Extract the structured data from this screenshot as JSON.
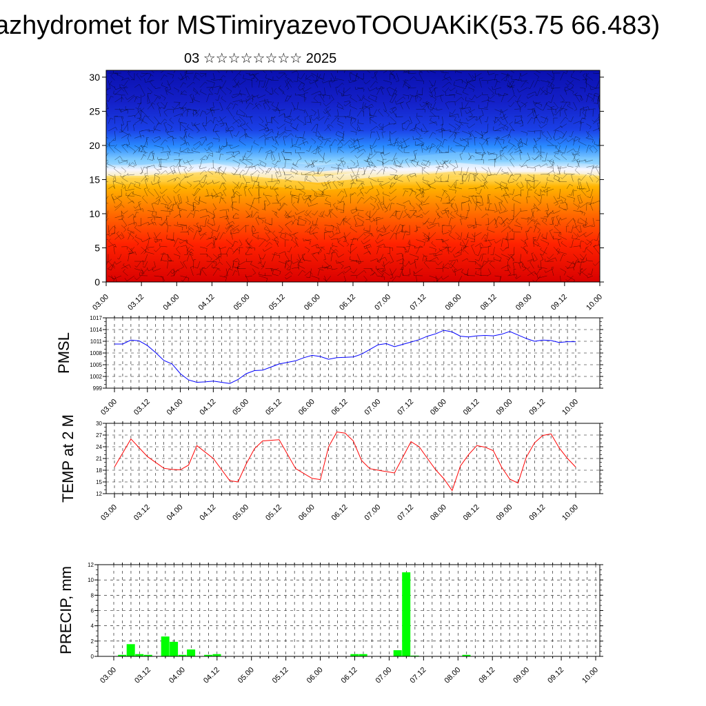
{
  "title": "azhydromet for MSTimiryazevoTOOUAKiK(53.75 66.483)",
  "subtitle": "03 ☆☆☆☆☆☆☆☆ 2025",
  "colors": {
    "pmsl_line": "#0000ff",
    "temp_line": "#ff0000",
    "precip_bar": "#00ff00"
  },
  "time_ticks": [
    "03.00",
    "03.12",
    "04.00",
    "04.12",
    "05.00",
    "05.12",
    "06.00",
    "06.12",
    "07.00",
    "07.12",
    "08.00",
    "08.12",
    "09.00",
    "09.12",
    "10.00"
  ],
  "chart_data": [
    {
      "type": "heatmap",
      "title": "",
      "xlabel": "",
      "ylabel": "",
      "x_ticks": [
        "03.00",
        "03.12",
        "04.00",
        "04.12",
        "05.00",
        "05.12",
        "06.00",
        "06.12",
        "07.00",
        "07.12",
        "08.00",
        "08.12",
        "09.00",
        "09.12",
        "10.00"
      ],
      "y_ticks": [
        0,
        5,
        10,
        15,
        20,
        25,
        30
      ],
      "ylim": [
        0,
        31
      ],
      "description_colormap": "red at low levels through orange/yellow (~15) to light blue (~18) and dark blue above 22, with wind barbs overlaid",
      "warm_cold_boundary_level": [
        16,
        16,
        16.5,
        17,
        16,
        15.5,
        15,
        15.5,
        16,
        16.5,
        17,
        16.5,
        16.5,
        16.5,
        16
      ]
    },
    {
      "type": "line",
      "ylabel": "PMSL",
      "ylim": [
        999,
        1017
      ],
      "y_ticks": [
        999,
        1002,
        1005,
        1008,
        1011,
        1014,
        1017
      ],
      "x_ticks": [
        "03.00",
        "03.12",
        "04.00",
        "04.12",
        "05.00",
        "05.12",
        "06.00",
        "06.12",
        "07.00",
        "07.12",
        "08.00",
        "08.12",
        "09.00",
        "09.12",
        "10.00"
      ],
      "x_hours": [
        0,
        3,
        6,
        9,
        12,
        15,
        18,
        21,
        24,
        27,
        30,
        33,
        36,
        39,
        42,
        45,
        48,
        51,
        54,
        57,
        60,
        63,
        66,
        69,
        72,
        75,
        78,
        81,
        84,
        87,
        90,
        93,
        96,
        99,
        102,
        105,
        108,
        111,
        114,
        117,
        120,
        123,
        126,
        129,
        132,
        135,
        138,
        141,
        144,
        147,
        150,
        153,
        156,
        159,
        162,
        165,
        168
      ],
      "series": [
        {
          "values": [
            1010.3,
            1010.3,
            1011.3,
            1011.1,
            1009.9,
            1008.1,
            1006.1,
            1005.2,
            1002.7,
            1001.1,
            1000.5,
            1000.6,
            1000.8,
            1000.5,
            1000.2,
            1001.2,
            1002.7,
            1003.5,
            1003.6,
            1004.4,
            1005.2,
            1005.6,
            1006.0,
            1006.8,
            1007.4,
            1007.1,
            1006.4,
            1006.8,
            1006.9,
            1007.0,
            1007.7,
            1008.9,
            1010.1,
            1010.4,
            1009.6,
            1010.2,
            1010.8,
            1011.4,
            1012.3,
            1012.9,
            1013.8,
            1013.4,
            1012.3,
            1012.1,
            1012.4,
            1012.5,
            1012.4,
            1012.8,
            1013.5,
            1012.6,
            1011.7,
            1011.0,
            1011.3,
            1011.2,
            1010.7,
            1010.9,
            1010.9
          ]
        }
      ]
    },
    {
      "type": "line",
      "ylabel": "TEMP at 2 M",
      "ylim": [
        12,
        30
      ],
      "y_ticks": [
        12,
        15,
        18,
        21,
        24,
        27,
        30
      ],
      "x_ticks": [
        "03.00",
        "03.12",
        "04.00",
        "04.12",
        "05.00",
        "05.12",
        "06.00",
        "06.12",
        "07.00",
        "07.12",
        "08.00",
        "08.12",
        "09.00",
        "09.12",
        "10.00"
      ],
      "x_hours": [
        0,
        6,
        12,
        18,
        21,
        24,
        27,
        30,
        36,
        42,
        45,
        48,
        51,
        54,
        60,
        66,
        72,
        75,
        78,
        81,
        84,
        87,
        90,
        93,
        96,
        102,
        108,
        111,
        114,
        117,
        120,
        123,
        126,
        129,
        132,
        135,
        138,
        141,
        144,
        147,
        150,
        153,
        156,
        159,
        162,
        165,
        168
      ],
      "series": [
        {
          "values": [
            18.8,
            26.0,
            21.5,
            18.5,
            18.2,
            18.1,
            19.3,
            24.3,
            21.0,
            15.3,
            15.0,
            19.6,
            23.5,
            25.5,
            25.8,
            18.4,
            15.9,
            15.6,
            24.0,
            27.8,
            27.5,
            25.5,
            20.5,
            18.4,
            18.0,
            17.3,
            25.3,
            24.0,
            21.0,
            18.1,
            15.8,
            12.8,
            19.1,
            22.0,
            24.3,
            23.9,
            23.0,
            18.8,
            15.7,
            14.7,
            21.3,
            25.0,
            26.9,
            27.3,
            23.7,
            21.0,
            18.8
          ]
        }
      ]
    },
    {
      "type": "bar",
      "ylabel": "PRECIP, mm",
      "ylim": [
        0,
        12
      ],
      "y_ticks": [
        0,
        2,
        4,
        6,
        8,
        10,
        12
      ],
      "x_ticks": [
        "03.00",
        "03.12",
        "04.00",
        "04.12",
        "05.00",
        "05.12",
        "06.00",
        "06.12",
        "07.00",
        "07.12",
        "08.00",
        "08.12",
        "09.00",
        "09.12",
        "10.00"
      ],
      "bar_width_hours": 3,
      "x_hours": [
        0,
        3,
        6,
        9,
        12,
        15,
        18,
        21,
        24,
        27,
        30,
        33,
        36,
        39,
        42,
        45,
        48,
        51,
        54,
        57,
        60,
        63,
        66,
        69,
        72,
        75,
        78,
        81,
        84,
        87,
        90,
        93,
        96,
        99,
        102,
        105,
        108,
        111,
        114,
        117,
        120,
        123,
        126,
        129,
        132,
        135,
        138,
        141,
        144,
        147,
        150,
        153,
        156,
        159,
        162,
        165
      ],
      "values": [
        0.0,
        0.2,
        1.6,
        0.3,
        0.2,
        0.0,
        2.6,
        1.9,
        0.2,
        0.9,
        0.0,
        0.2,
        0.3,
        0.0,
        0.0,
        0.0,
        0.0,
        0.0,
        0.0,
        0.0,
        0.0,
        0.0,
        0.0,
        0.0,
        0.0,
        0.0,
        0.0,
        0.0,
        0.3,
        0.3,
        0.0,
        0.0,
        0.0,
        0.8,
        11.0,
        0.1,
        0.0,
        0.0,
        0.0,
        0.0,
        0.0,
        0.2,
        0.0,
        0.0,
        0.0,
        0.0,
        0.0,
        0.0,
        0.0,
        0.0,
        0.0,
        0.0,
        0.0,
        0.0,
        0.0,
        0.0
      ]
    }
  ]
}
